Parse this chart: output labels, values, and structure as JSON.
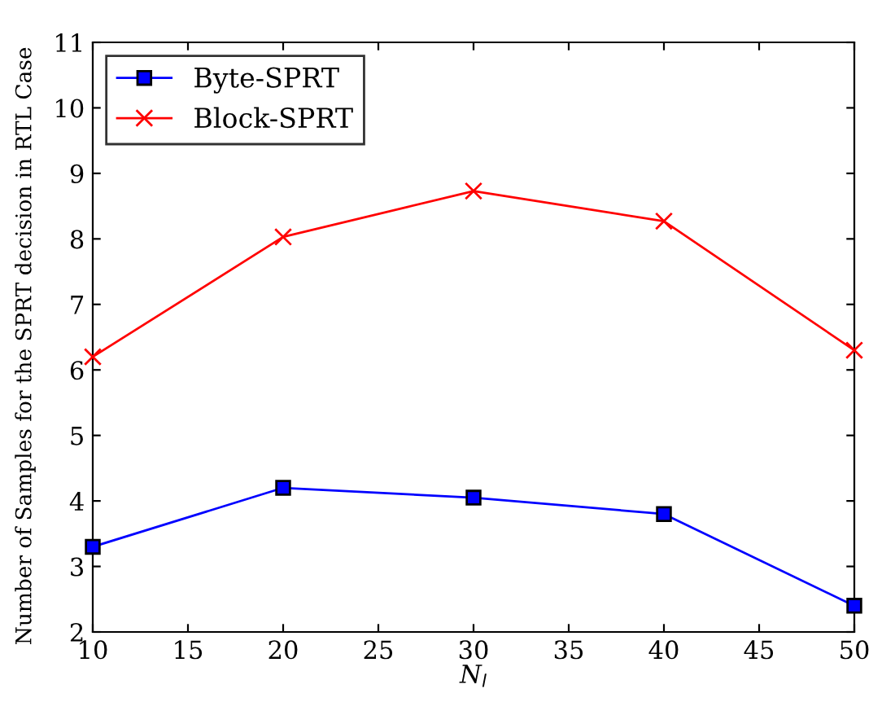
{
  "chart_data": {
    "type": "line",
    "xlabel": "N$_{l}$",
    "ylabel": "Number of Samples for the SPRT decision in RTL Case",
    "x": [
      10,
      20,
      30,
      40,
      50
    ],
    "series": [
      {
        "name": "Byte-SPRT",
        "color": "#0000ff",
        "marker": "square",
        "values": [
          3.3,
          4.2,
          4.05,
          3.8,
          2.4
        ]
      },
      {
        "name": "Block-SPRT",
        "color": "#ff0000",
        "marker": "cross",
        "values": [
          6.2,
          8.03,
          8.73,
          8.27,
          6.3
        ]
      }
    ],
    "xlim": [
      10,
      50
    ],
    "xticks": [
      10,
      15,
      20,
      25,
      30,
      35,
      40,
      45,
      50
    ],
    "ylim": [
      2,
      11
    ],
    "yticks": [
      2,
      3,
      4,
      5,
      6,
      7,
      8,
      9,
      10,
      11
    ],
    "grid": false,
    "legend": "top left"
  }
}
